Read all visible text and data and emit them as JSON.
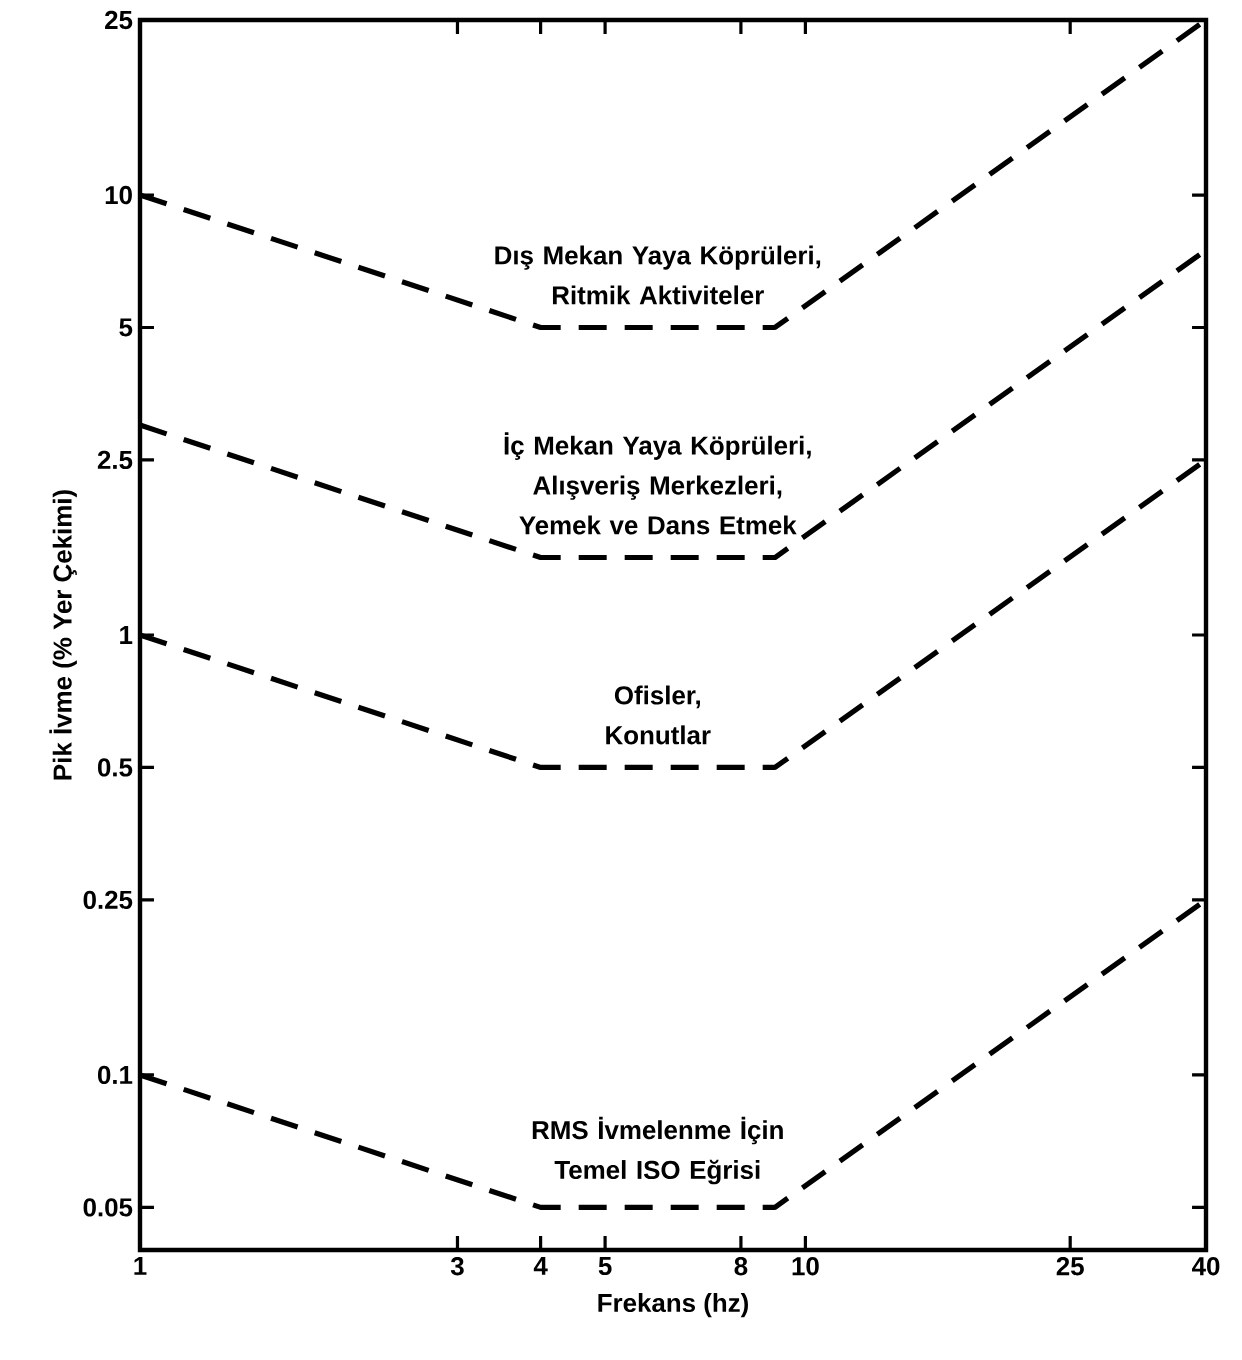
{
  "chart_data": {
    "type": "line",
    "xlabel": "Frekans (hz)",
    "ylabel": "Pik İvme (% Yer Çekimi)",
    "log": "xy",
    "grid": false,
    "legend": false,
    "marker": "none",
    "line_style": "dashed",
    "xlim": [
      1,
      40
    ],
    "ylim": [
      0.04,
      25
    ],
    "xticks": [
      1,
      3,
      4,
      5,
      8,
      10,
      25,
      40
    ],
    "yticks": [
      0.05,
      0.1,
      0.25,
      0.5,
      1,
      2.5,
      5,
      10,
      25
    ],
    "x": [
      1,
      4,
      9,
      40
    ],
    "series": [
      {
        "name": "Dış Mekan Yaya Köprüleri, Ritmik Aktiviteler",
        "color": "#000000",
        "values": [
          10,
          5,
          5,
          25
        ]
      },
      {
        "name": "İç Mekan Yaya Köprüleri, Alışveriş Merkezleri, Yemek ve Dans Etmek",
        "color": "#000000",
        "values": [
          3,
          1.5,
          1.5,
          7.5
        ]
      },
      {
        "name": "Ofisler, Konutlar",
        "color": "#000000",
        "values": [
          1,
          0.5,
          0.5,
          2.5
        ]
      },
      {
        "name": "RMS İvmelenme İçin Temel ISO Eğrisi",
        "color": "#000000",
        "values": [
          0.1,
          0.05,
          0.05,
          0.25
        ]
      }
    ]
  }
}
